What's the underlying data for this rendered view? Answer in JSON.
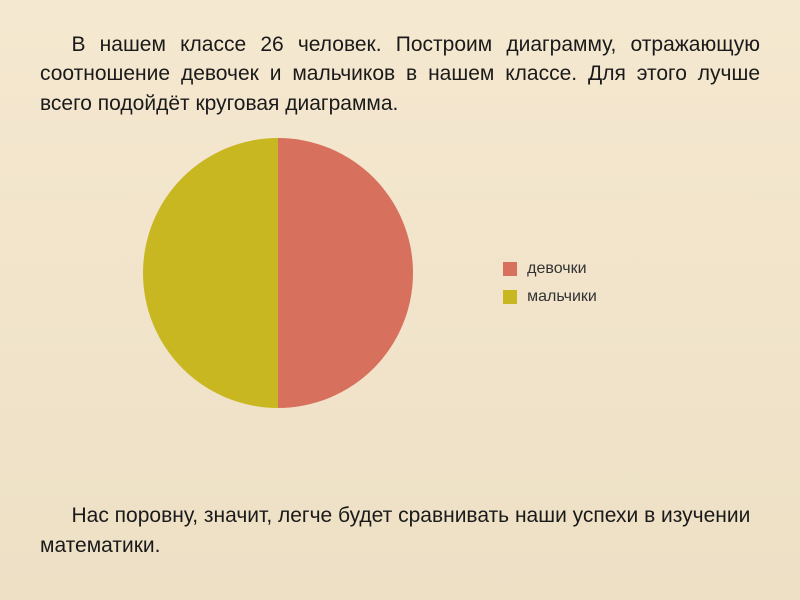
{
  "intro": "В нашем классе 26 человек. Построим диаграмму, отражающую соотношение девочек и мальчиков в нашем классе. Для этого лучше всего подойдёт круговая диаграмма.",
  "outro": "Нас поровну, значит, легче будет сравнивать наши успехи в изучении математики.",
  "chart": {
    "type": "pie",
    "radius": 135,
    "slices": [
      {
        "label": "девочки",
        "value": 13,
        "fraction": 0.5,
        "color": "#d8705e"
      },
      {
        "label": "мальчики",
        "value": 13,
        "fraction": 0.5,
        "color": "#c9b722"
      }
    ],
    "background_color": "transparent"
  },
  "legend": {
    "items": [
      {
        "label": "девочки",
        "swatch_color": "#d8705e"
      },
      {
        "label": "мальчики",
        "swatch_color": "#c9b722"
      }
    ],
    "label_fontsize": 16
  },
  "typography": {
    "body_fontsize": 21,
    "font_family": "Arial, sans-serif",
    "text_color": "#1a1a1a"
  },
  "background_gradient": {
    "top": "#f5e8d0",
    "bottom": "#ede0c5"
  }
}
